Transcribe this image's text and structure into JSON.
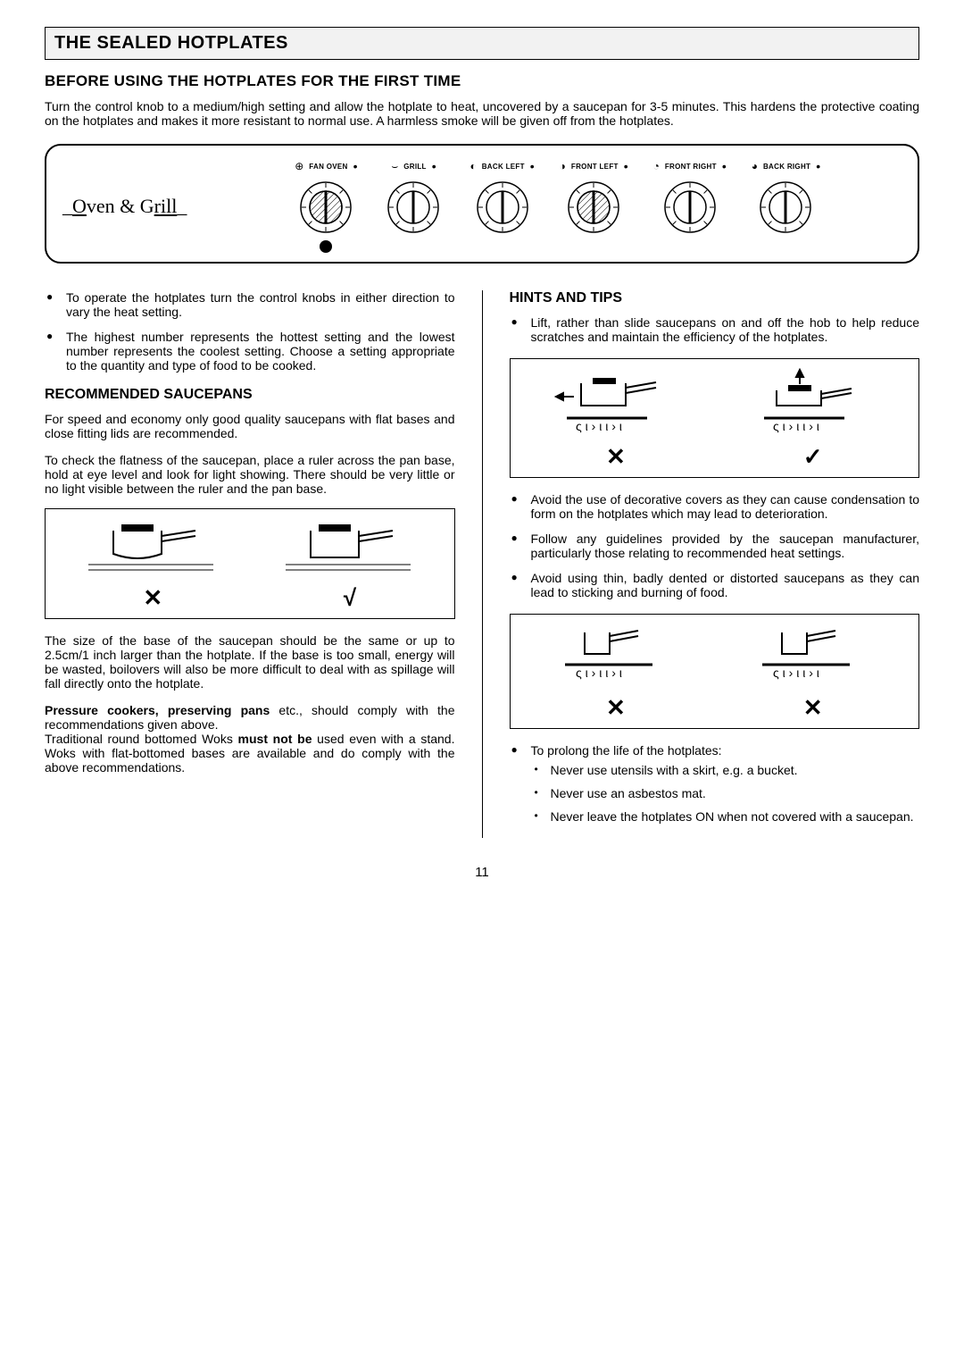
{
  "section_title": "THE SEALED HOTPLATES",
  "h2_before": "BEFORE USING THE HOTPLATES FOR THE FIRST TIME",
  "intro": "Turn the control knob to a medium/high setting and allow the hotplate to heat, uncovered by a saucepan for 3-5 minutes. This hardens the protective coating on the hotplates and makes it more resistant to normal use.  A harmless smoke will be given off from the hotplates.",
  "panel": {
    "logo_pre": "O",
    "logo_mid": "ven & G",
    "logo_post": "rill",
    "knobs": [
      {
        "label": "FAN OVEN",
        "hatched": true,
        "has_bottom_dot": true
      },
      {
        "label": "GRILL",
        "hatched": false,
        "has_bottom_dot": false
      },
      {
        "label": "BACK LEFT",
        "hatched": false,
        "has_bottom_dot": false
      },
      {
        "label": "FRONT LEFT",
        "hatched": true,
        "has_bottom_dot": false
      },
      {
        "label": "FRONT RIGHT",
        "hatched": false,
        "has_bottom_dot": false
      },
      {
        "label": "BACK RIGHT",
        "hatched": false,
        "has_bottom_dot": false
      }
    ]
  },
  "left": {
    "bullets": [
      "To operate the hotplates turn the control knobs in either direction to vary the heat setting.",
      "The highest number represents the hottest setting and the lowest number represents the coolest setting.  Choose a setting appropriate to the quantity and type of food to be cooked."
    ],
    "h3_saucepans": "RECOMMENDED SAUCEPANS",
    "p_speed": "For speed and economy only good quality saucepans with flat bases and close fitting lids are recommended.",
    "p_check": "To check the flatness of the saucepan, place a ruler across the pan base, hold at eye level and look for light showing.  There should be very little or no light visible between the ruler and the pan base.",
    "p_size": "The size of the base of the saucepan should be the same or up to 2.5cm/1 inch larger than the hotplate. If the base is too small, energy will be wasted, boilovers will also be more difficult to deal with as spillage will fall directly onto the hotplate.",
    "p_pressure_b": "Pressure cookers, preserving pans",
    "p_pressure_rest": " etc., should comply with the recommendations given above.",
    "p_woks_a": "Traditional round bottomed Woks ",
    "p_woks_b": "must not be",
    "p_woks_c": " used even with a stand.  Woks with flat-bottomed bases are available and do comply with the above recommendations."
  },
  "right": {
    "h3_hints": "HINTS AND TIPS",
    "b_lift": "Lift, rather than slide saucepans on and off the hob to help reduce scratches and maintain the efficiency of the hotplates.",
    "b_avoid_covers": "Avoid the use of decorative covers as they can cause condensation to form on the hotplates which may lead to deterioration.",
    "b_follow": "Follow any guidelines provided by the saucepan manufacturer, particularly those relating to recommended heat settings.",
    "b_thin": "Avoid using thin, badly dented or distorted saucepans as they can lead to sticking and burning of food.",
    "b_prolong": "To prolong the life of the hotplates:",
    "sub": [
      "Never use utensils with a skirt, e.g. a bucket.",
      "Never use an asbestos mat.",
      "Never leave the hotplates ON when not covered with a saucepan."
    ]
  },
  "marks": {
    "x": "✕",
    "check": "✓",
    "tick_j": "√"
  },
  "page_num": "11",
  "colors": {
    "text": "#000000",
    "bg": "#ffffff",
    "title_bg": "#f2f2f2",
    "border": "#000000"
  }
}
